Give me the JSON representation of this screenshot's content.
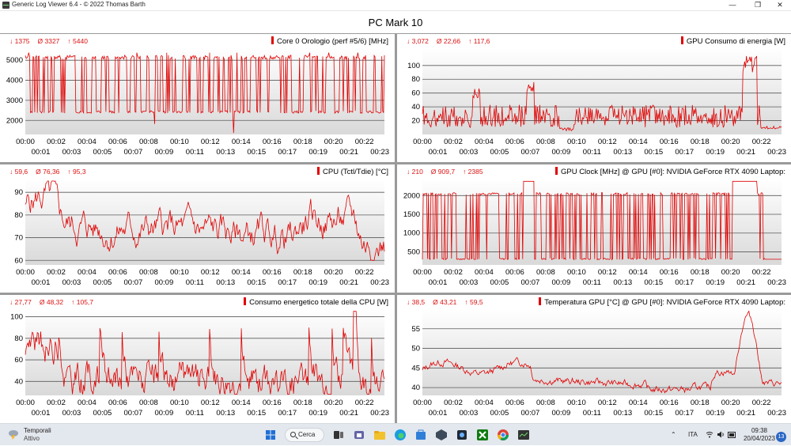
{
  "window": {
    "title": "Generic Log Viewer 6.4 - © 2022 Thomas Barth",
    "controls": {
      "minimize": "—",
      "maximize": "❐",
      "close": "✕"
    }
  },
  "page_title": "PC Mark 10",
  "x_ticks_top": [
    "00:00",
    "00:02",
    "00:04",
    "00:06",
    "00:08",
    "00:10",
    "00:12",
    "00:14",
    "00:16",
    "00:18",
    "00:20",
    "00:22"
  ],
  "x_ticks_bottom": [
    "00:01",
    "00:03",
    "00:05",
    "00:07",
    "00:09",
    "00:11",
    "00:13",
    "00:15",
    "00:17",
    "00:19",
    "00:21",
    "00:23"
  ],
  "colors": {
    "series": "#e00000",
    "grid": "#5a5a5a",
    "plot_bg_top": "#ffffff",
    "plot_bg_bottom": "#d9d9d9",
    "divider": "#9a9a9a"
  },
  "chart_data": [
    {
      "type": "line",
      "title": "Core 0 Orologio (perf #5/6) [MHz]",
      "stats": {
        "min": "↓ 1375",
        "avg": "Ø 3327",
        "max": "↑ 5440"
      },
      "y_ticks": [
        "2000",
        "3000",
        "4000",
        "5000"
      ],
      "ylim": [
        1300,
        5600
      ],
      "x_unit_range": [
        0,
        23.3
      ],
      "series": [
        {
          "mode": "square",
          "low": 2420,
          "high": 5150,
          "spikes": [
            5380,
            5300
          ],
          "dips": [
            1375,
            1820
          ],
          "seed": 3
        }
      ],
      "x": [
        0,
        23.3
      ]
    },
    {
      "type": "line",
      "title": "GPU Consumo di energia [W]",
      "stats": {
        "min": "↓ 3,072",
        "avg": "Ø 22,66",
        "max": "↑ 117,6"
      },
      "y_ticks": [
        "20",
        "40",
        "60",
        "80",
        "100"
      ],
      "ylim": [
        0,
        125
      ],
      "series": [
        {
          "mode": "gpupower",
          "seed": 11
        }
      ],
      "x": [
        0,
        23.3
      ]
    },
    {
      "type": "line",
      "title": "CPU (Tctl/Tdie) [°C]",
      "stats": {
        "min": "↓ 59,6",
        "avg": "Ø 76,36",
        "max": "↑ 95,3"
      },
      "y_ticks": [
        "60",
        "70",
        "80",
        "90"
      ],
      "ylim": [
        58,
        96
      ],
      "series": [
        {
          "mode": "cputemp",
          "seed": 5
        }
      ],
      "x": [
        0,
        23.3
      ]
    },
    {
      "type": "line",
      "title": "GPU Clock [MHz] @ GPU [#0]: NVIDIA GeForce RTX 4090 Laptop:",
      "stats": {
        "min": "↓ 210",
        "avg": "Ø 909,7",
        "max": "↑ 2385"
      },
      "y_ticks": [
        "500",
        "1000",
        "1500",
        "2000"
      ],
      "ylim": [
        150,
        2450
      ],
      "series": [
        {
          "mode": "gpuclock",
          "seed": 7
        }
      ],
      "x": [
        0,
        23.3
      ]
    },
    {
      "type": "line",
      "title": "Consumo energetico totale della CPU [W]",
      "stats": {
        "min": "↓ 27,77",
        "avg": "Ø 48,32",
        "max": "↑ 105,7"
      },
      "y_ticks": [
        "40",
        "60",
        "80",
        "100"
      ],
      "ylim": [
        27,
        107
      ],
      "series": [
        {
          "mode": "cpupower",
          "seed": 9
        }
      ],
      "x": [
        0,
        23.3
      ]
    },
    {
      "type": "line",
      "title": "Temperatura GPU [°C] @ GPU [#0]: NVIDIA GeForce RTX 4090 Laptop:",
      "stats": {
        "min": "↓ 38,5",
        "avg": "Ø 43,21",
        "max": "↑ 59,5"
      },
      "y_ticks": [
        "40",
        "45",
        "50",
        "55"
      ],
      "ylim": [
        38,
        60
      ],
      "series": [
        {
          "mode": "gputemp",
          "seed": 13
        }
      ],
      "x": [
        0,
        23.3
      ]
    }
  ],
  "taskbar": {
    "weather": {
      "title": "Temporali",
      "subtitle": "Attivo"
    },
    "search_label": "Cerca",
    "lang": "ITA",
    "time": "09:38",
    "date": "20/04/2023",
    "notifications": "13",
    "icons": [
      "windows-start-icon",
      "search-icon",
      "file-explorer-icon",
      "teams-icon",
      "folder-icon",
      "edge-icon",
      "store-icon",
      "app-icon",
      "xbox-icon",
      "chrome-icon",
      "terminal-icon"
    ]
  }
}
